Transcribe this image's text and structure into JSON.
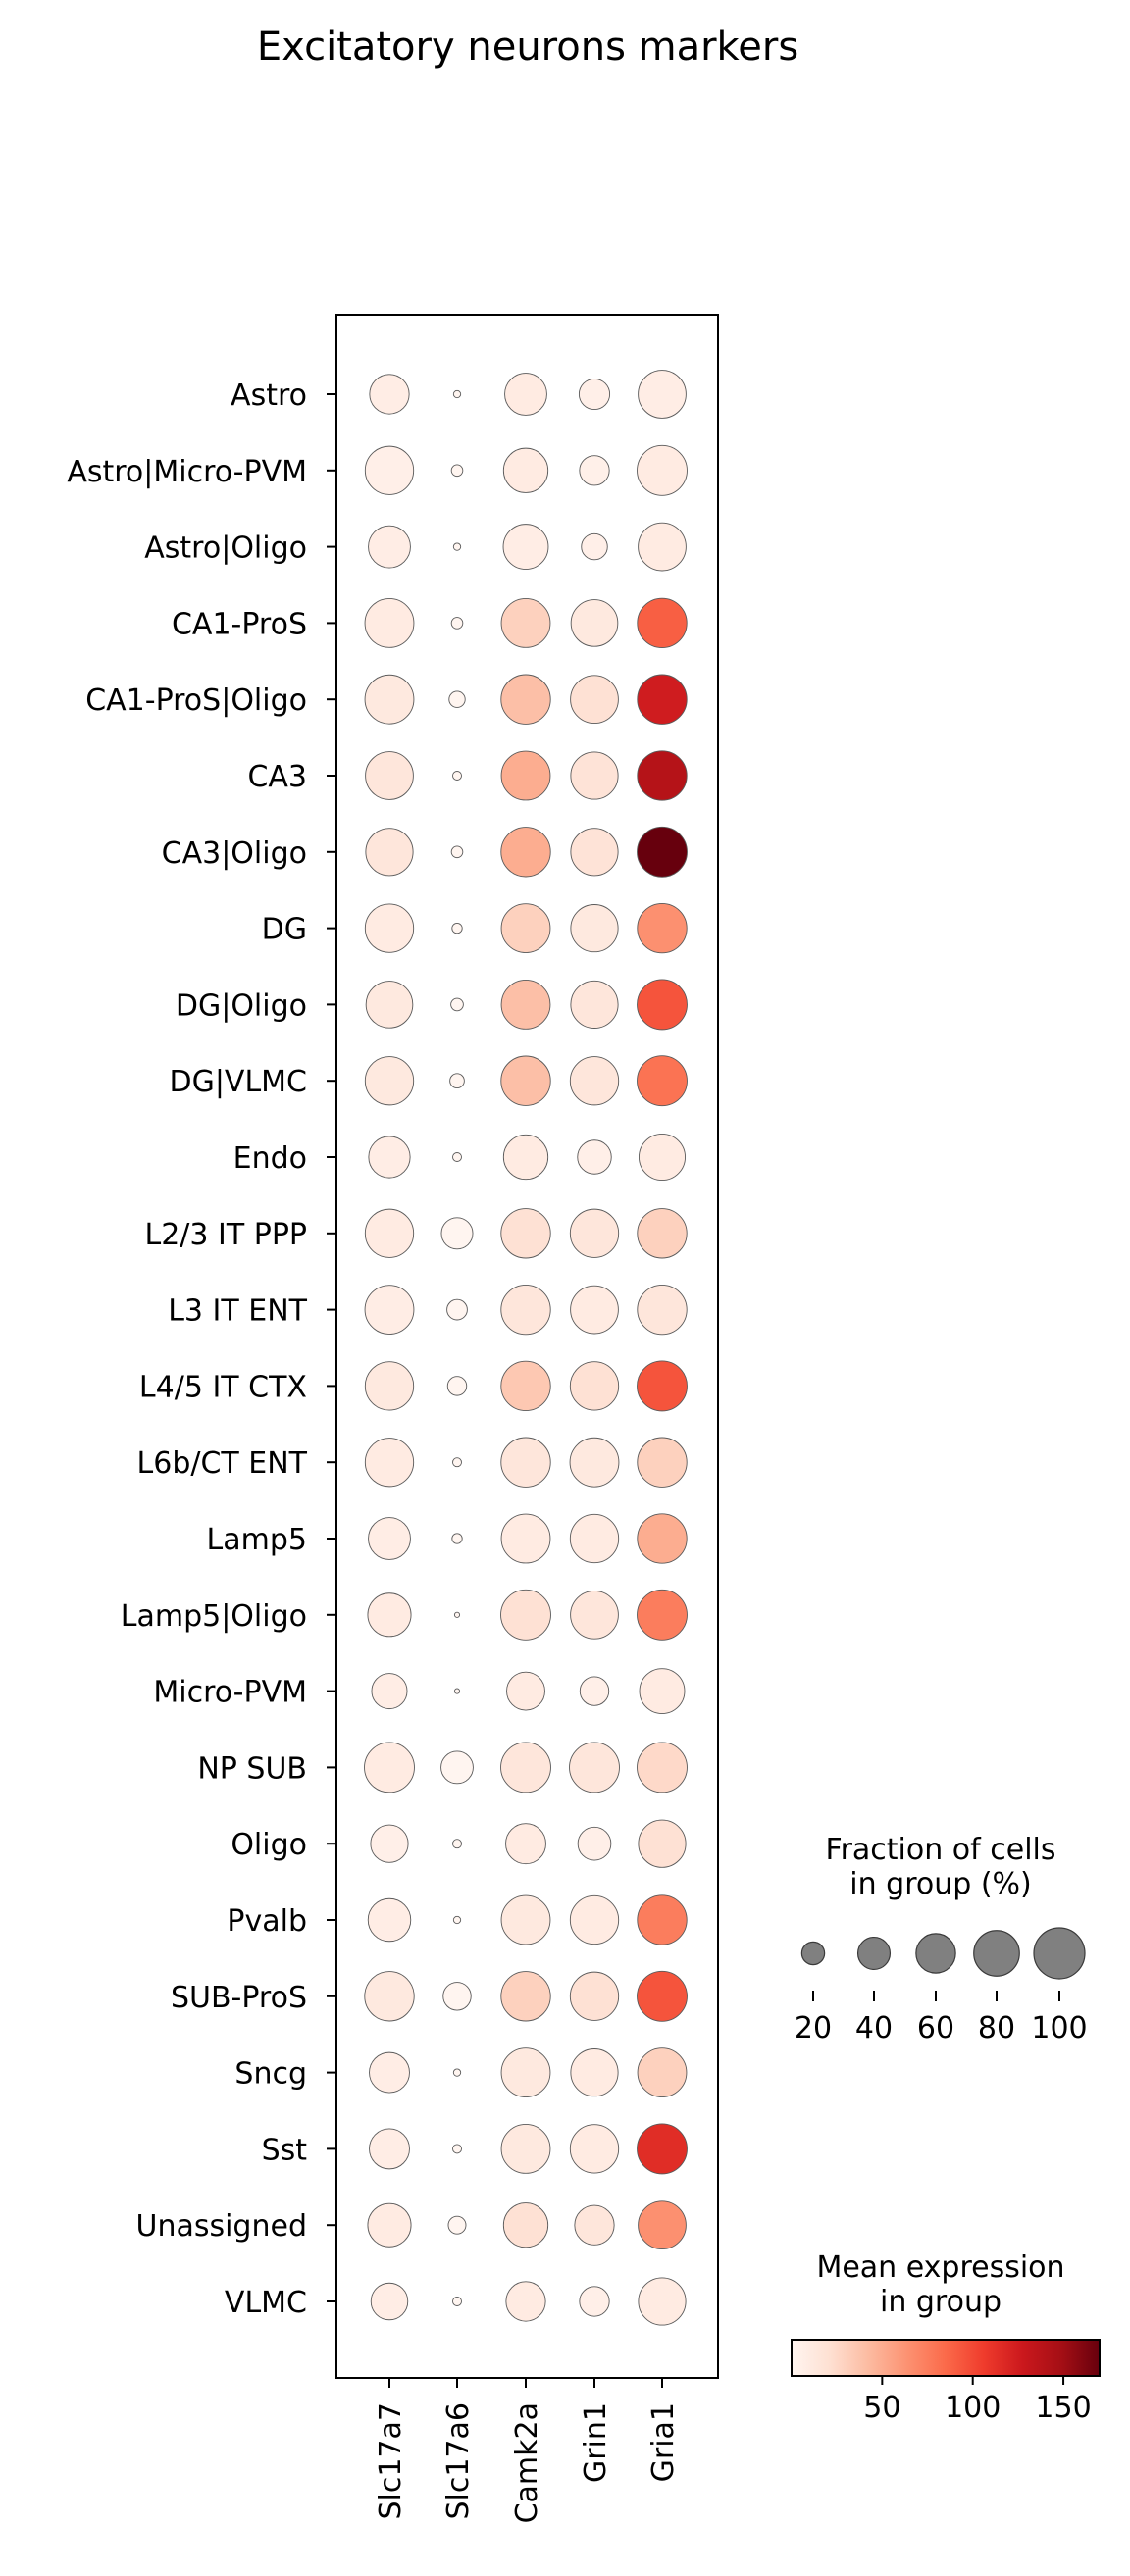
{
  "chart_data": {
    "type": "dotplot",
    "title": "Excitatory neurons markers",
    "genes": [
      "Slc17a7",
      "Slc17a6",
      "Camk2a",
      "Grin1",
      "Gria1"
    ],
    "groups": [
      "Astro",
      "Astro|Micro-PVM",
      "Astro|Oligo",
      "CA1-ProS",
      "CA1-ProS|Oligo",
      "CA3",
      "CA3|Oligo",
      "DG",
      "DG|Oligo",
      "DG|VLMC",
      "Endo",
      "L2/3 IT PPP",
      "L3 IT ENT",
      "L4/5 IT CTX",
      "L6b/CT ENT",
      "Lamp5",
      "Lamp5|Oligo",
      "Micro-PVM",
      "NP SUB",
      "Oligo",
      "Pvalb",
      "SUB-ProS",
      "Sncg",
      "Sst",
      "Unassigned",
      "VLMC"
    ],
    "fraction_pct": [
      [
        60,
        2,
        68,
        36,
        88
      ],
      [
        90,
        5,
        76,
        34,
        96
      ],
      [
        68,
        2,
        78,
        26,
        88
      ],
      [
        92,
        5,
        92,
        84,
        94
      ],
      [
        92,
        10,
        94,
        88,
        94
      ],
      [
        88,
        3,
        92,
        86,
        94
      ],
      [
        86,
        5,
        94,
        86,
        96
      ],
      [
        90,
        4,
        92,
        86,
        94
      ],
      [
        84,
        6,
        92,
        86,
        96
      ],
      [
        90,
        8,
        94,
        90,
        96
      ],
      [
        66,
        3,
        76,
        44,
        82
      ],
      [
        90,
        38,
        94,
        90,
        94
      ],
      [
        92,
        16,
        94,
        88,
        94
      ],
      [
        90,
        14,
        94,
        90,
        96
      ],
      [
        90,
        3,
        94,
        92,
        94
      ],
      [
        68,
        4,
        92,
        90,
        94
      ],
      [
        72,
        1,
        96,
        88,
        96
      ],
      [
        48,
        1,
        56,
        32,
        78
      ],
      [
        96,
        40,
        96,
        96,
        96
      ],
      [
        54,
        3,
        62,
        42,
        86
      ],
      [
        70,
        2,
        92,
        90,
        94
      ],
      [
        94,
        30,
        94,
        90,
        96
      ],
      [
        62,
        2,
        92,
        86,
        92
      ],
      [
        62,
        3,
        92,
        90,
        96
      ],
      [
        72,
        12,
        76,
        60,
        88
      ],
      [
        52,
        3,
        60,
        34,
        86
      ]
    ],
    "mean_expression": [
      [
        8,
        0,
        10,
        6,
        8
      ],
      [
        6,
        0,
        10,
        5,
        10
      ],
      [
        8,
        0,
        8,
        6,
        10
      ],
      [
        10,
        0,
        30,
        12,
        90
      ],
      [
        12,
        0,
        40,
        20,
        125
      ],
      [
        15,
        0,
        50,
        18,
        140
      ],
      [
        15,
        0,
        50,
        18,
        170
      ],
      [
        10,
        0,
        30,
        12,
        65
      ],
      [
        12,
        0,
        40,
        15,
        95
      ],
      [
        12,
        0,
        40,
        15,
        80
      ],
      [
        8,
        0,
        10,
        6,
        10
      ],
      [
        10,
        0,
        20,
        15,
        30
      ],
      [
        8,
        0,
        15,
        10,
        15
      ],
      [
        12,
        0,
        35,
        20,
        95
      ],
      [
        10,
        0,
        15,
        12,
        30
      ],
      [
        8,
        0,
        10,
        10,
        50
      ],
      [
        10,
        0,
        20,
        15,
        75
      ],
      [
        8,
        0,
        10,
        6,
        10
      ],
      [
        10,
        0,
        15,
        15,
        25
      ],
      [
        6,
        0,
        10,
        6,
        20
      ],
      [
        8,
        0,
        12,
        10,
        75
      ],
      [
        12,
        0,
        30,
        20,
        95
      ],
      [
        8,
        0,
        12,
        10,
        30
      ],
      [
        8,
        0,
        12,
        10,
        115
      ],
      [
        10,
        0,
        20,
        15,
        65
      ],
      [
        8,
        0,
        10,
        6,
        10
      ]
    ],
    "size_legend": {
      "title": "Fraction of cells\nin group (%)",
      "values": [
        20,
        40,
        60,
        80,
        100
      ]
    },
    "color_legend": {
      "title": "Mean expression\nin group",
      "ticks": [
        50,
        100,
        150
      ],
      "min": 0,
      "max": 170,
      "colors": [
        "#fff5f0",
        "#fee0d2",
        "#fcbba1",
        "#fc9272",
        "#fb6a4a",
        "#ef3b2c",
        "#cb181d",
        "#a50f15",
        "#67000d"
      ]
    }
  }
}
